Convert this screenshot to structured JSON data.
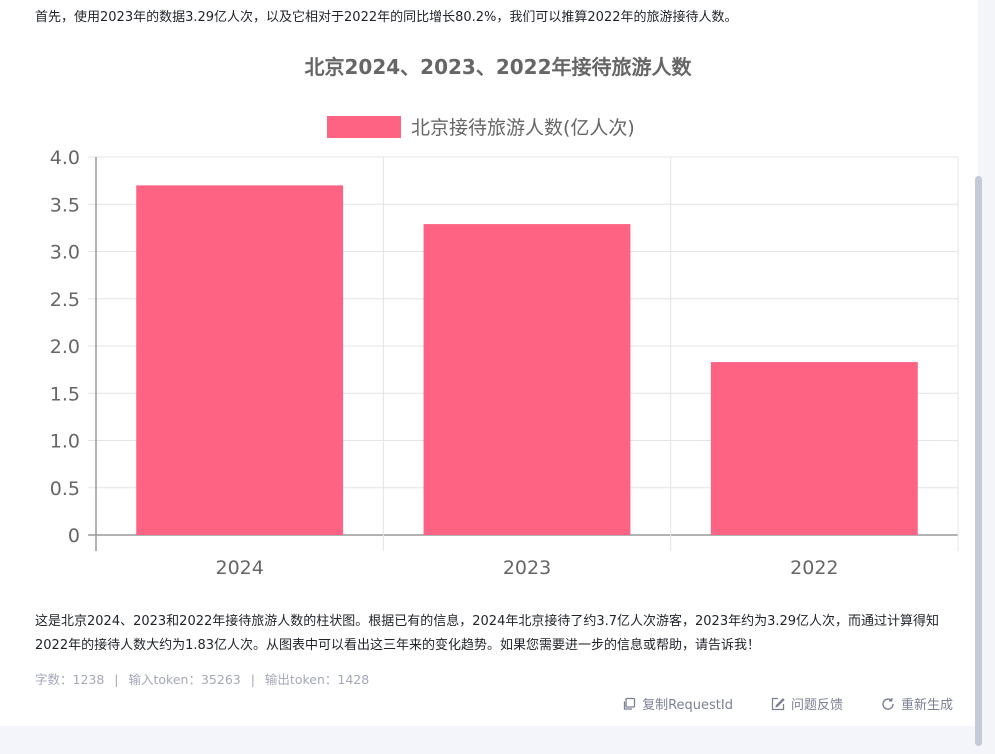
{
  "intro_text": "首先，使用2023年的数据3.29亿人次，以及它相对于2022年的同比增长80.2%，我们可以推算2022年的旅游接待人数。",
  "chart_data": {
    "type": "bar",
    "title": "北京2024、2023、2022年接待旅游人数",
    "categories": [
      "2024",
      "2023",
      "2022"
    ],
    "series": [
      {
        "name": "北京接待旅游人数(亿人次)",
        "values": [
          3.7,
          3.29,
          1.83
        ]
      }
    ],
    "ylim": [
      0,
      4.0
    ],
    "yticks": [
      "0",
      "0.5",
      "1.0",
      "1.5",
      "2.0",
      "2.5",
      "3.0",
      "3.5",
      "4.0"
    ],
    "ytick_values": [
      0,
      0.5,
      1.0,
      1.5,
      2.0,
      2.5,
      3.0,
      3.5,
      4.0
    ],
    "legend_position": "top-center",
    "grid": true,
    "bar_color": "#ff6384"
  },
  "summary_text": "这是北京2024、2023和2022年接待旅游人数的柱状图。根据已有的信息，2024年北京接待了约3.7亿人次游客，2023年约为3.29亿人次，而通过计算得知2022年的接待人数大约为1.83亿人次。从图表中可以看出这三年来的变化趋势。如果您需要进一步的信息或帮助，请告诉我！",
  "stats": {
    "word_count": "字数：1238",
    "input_tokens": "输入token：35263",
    "output_tokens": "输出token：1428",
    "separator": "|"
  },
  "actions": [
    {
      "label": "复制RequestId",
      "icon": "copy-icon"
    },
    {
      "label": "问题反馈",
      "icon": "edit-icon"
    },
    {
      "label": "重新生成",
      "icon": "refresh-icon"
    }
  ]
}
